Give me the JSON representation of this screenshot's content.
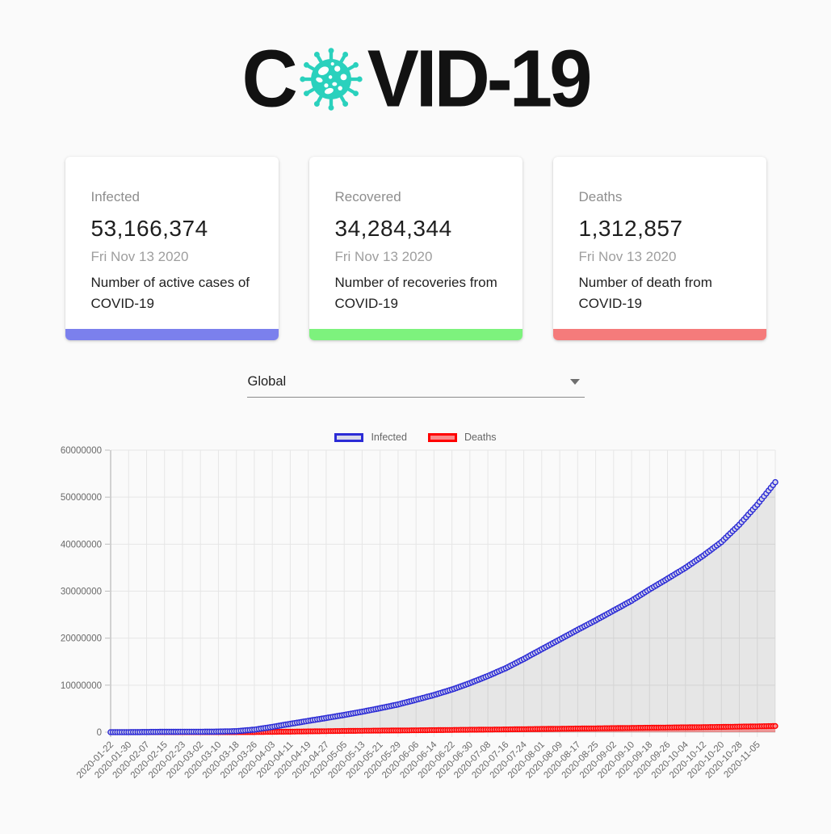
{
  "logo": {
    "prefix": "C",
    "suffix": "VID-19",
    "virus_icon_color": "#2ad1bd"
  },
  "cards": [
    {
      "title": "Infected",
      "value": "53,166,374",
      "date": "Fri Nov 13 2020",
      "description": "Number of active cases of COVID-19",
      "accent": "#7b80ed"
    },
    {
      "title": "Recovered",
      "value": "34,284,344",
      "date": "Fri Nov 13 2020",
      "description": "Number of recoveries from COVID-19",
      "accent": "#7df27d"
    },
    {
      "title": "Deaths",
      "value": "1,312,857",
      "date": "Fri Nov 13 2020",
      "description": "Number of death from COVID-19",
      "accent": "#f57b7b"
    }
  ],
  "country_select": {
    "value": "Global"
  },
  "chart_data": {
    "type": "line",
    "title": "",
    "xlabel": "",
    "ylabel": "",
    "ylim": [
      0,
      60000000
    ],
    "y_ticks": [
      0,
      10000000,
      20000000,
      30000000,
      40000000,
      50000000,
      60000000
    ],
    "grid": true,
    "legend_position": "top",
    "x_labels": [
      "2020-01-22",
      "2020-01-30",
      "2020-02-07",
      "2020-02-15",
      "2020-02-23",
      "2020-03-02",
      "2020-03-10",
      "2020-03-18",
      "2020-03-26",
      "2020-04-03",
      "2020-04-11",
      "2020-04-19",
      "2020-04-27",
      "2020-05-05",
      "2020-05-13",
      "2020-05-21",
      "2020-05-29",
      "2020-06-06",
      "2020-06-14",
      "2020-06-22",
      "2020-06-30",
      "2020-07-08",
      "2020-07-16",
      "2020-07-24",
      "2020-08-01",
      "2020-08-09",
      "2020-08-17",
      "2020-08-25",
      "2020-09-02",
      "2020-09-10",
      "2020-09-18",
      "2020-09-26",
      "2020-10-04",
      "2020-10-12",
      "2020-10-20",
      "2020-10-28",
      "2020-11-05"
    ],
    "series": [
      {
        "name": "Infected",
        "border_color": "#2b2bd6",
        "point_fill": "#d9d9ea",
        "area_fill_color": "#000000",
        "area_fill_opacity": 0.08,
        "values": [
          555,
          8235,
          34887,
          69032,
          78985,
          90307,
          118596,
          214821,
          529591,
          1116662,
          1771514,
          2401379,
          3023717,
          3662691,
          4347018,
          5102424,
          5901700,
          6882549,
          7907245,
          9069492,
          10435321,
          11950313,
          13616593,
          15581069,
          17660523,
          19718030,
          21786512,
          23780267,
          25884640,
          27972894,
          30369778,
          32647451,
          34971594,
          37578051,
          40451477,
          44154442,
          48418196
        ]
      },
      {
        "name": "Deaths",
        "border_color": "#ff0000",
        "point_fill": "#fa8a8a",
        "area_fill_color": "#ff0000",
        "area_fill_opacity": 0.35,
        "values": [
          17,
          171,
          724,
          1666,
          2469,
          3085,
          4262,
          8733,
          23970,
          58929,
          108503,
          165044,
          211609,
          257239,
          297197,
          333446,
          364891,
          399712,
          433402,
          471754,
          509779,
          546318,
          585727,
          635173,
          680894,
          728896,
          772647,
          815038,
          860276,
          904268,
          950344,
          991224,
          1034068,
          1077799,
          1125071,
          1179193,
          1242917
        ]
      }
    ],
    "end_point": {
      "date": "2020-11-13",
      "infected": 53166374,
      "deaths": 1312857
    }
  }
}
